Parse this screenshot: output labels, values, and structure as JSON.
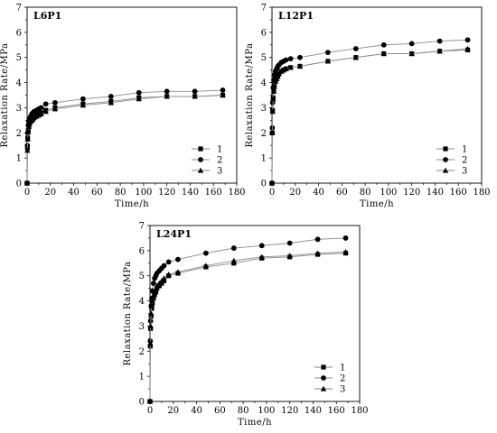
{
  "chart_data": [
    {
      "type": "line",
      "title": "L6P1",
      "xlabel": "Time/h",
      "ylabel": "Relaxation Rate/MPa",
      "xlim": [
        0,
        180
      ],
      "ylim": [
        0,
        7
      ],
      "xticks": [
        "0",
        "20",
        "40",
        "60",
        "80",
        "100",
        "120",
        "140",
        "160",
        "180"
      ],
      "yticks": [
        "0",
        "1",
        "2",
        "3",
        "4",
        "5",
        "6",
        "7"
      ],
      "legend_position": "bottom-right",
      "series": [
        {
          "name": "1",
          "marker": "square",
          "x": [
            0,
            0.25,
            0.5,
            1,
            1.5,
            2,
            3,
            4,
            5,
            6,
            8,
            10,
            12,
            16,
            24,
            48,
            72,
            96,
            120,
            144,
            168
          ],
          "y": [
            0,
            1.4,
            1.8,
            2.1,
            2.3,
            2.4,
            2.5,
            2.55,
            2.6,
            2.65,
            2.7,
            2.75,
            2.8,
            2.9,
            3.0,
            3.15,
            3.25,
            3.4,
            3.45,
            3.45,
            3.5
          ]
        },
        {
          "name": "2",
          "marker": "circle",
          "x": [
            0,
            0.25,
            0.5,
            1,
            1.5,
            2,
            3,
            4,
            5,
            6,
            8,
            10,
            12,
            16,
            24,
            48,
            72,
            96,
            120,
            144,
            168
          ],
          "y": [
            0,
            1.5,
            2.0,
            2.3,
            2.45,
            2.55,
            2.65,
            2.75,
            2.8,
            2.85,
            2.9,
            2.95,
            3.0,
            3.15,
            3.2,
            3.35,
            3.45,
            3.6,
            3.65,
            3.65,
            3.7
          ]
        },
        {
          "name": "3",
          "marker": "triangle",
          "x": [
            0,
            0.25,
            0.5,
            1,
            1.5,
            2,
            3,
            4,
            5,
            6,
            8,
            10,
            12,
            16,
            24,
            48,
            72,
            96,
            120,
            144,
            168
          ],
          "y": [
            0,
            1.3,
            1.75,
            2.05,
            2.25,
            2.35,
            2.45,
            2.5,
            2.55,
            2.6,
            2.65,
            2.7,
            2.75,
            2.85,
            2.95,
            3.1,
            3.2,
            3.35,
            3.45,
            3.45,
            3.5
          ]
        }
      ]
    },
    {
      "type": "line",
      "title": "L12P1",
      "xlabel": "Time/h",
      "ylabel": "Relaxation Rate/MPa",
      "xlim": [
        0,
        180
      ],
      "ylim": [
        0,
        7
      ],
      "xticks": [
        "0",
        "20",
        "40",
        "60",
        "80",
        "100",
        "120",
        "140",
        "160",
        "180"
      ],
      "yticks": [
        "0",
        "1",
        "2",
        "3",
        "4",
        "5",
        "6",
        "7"
      ],
      "legend_position": "bottom-right",
      "series": [
        {
          "name": "1",
          "marker": "square",
          "x": [
            0,
            0.25,
            0.5,
            1,
            1.5,
            2,
            3,
            4,
            5,
            6,
            8,
            10,
            12,
            16,
            24,
            48,
            72,
            96,
            120,
            144,
            168
          ],
          "y": [
            0,
            2.0,
            2.9,
            3.4,
            3.7,
            3.9,
            4.1,
            4.2,
            4.3,
            4.35,
            4.45,
            4.5,
            4.55,
            4.6,
            4.65,
            4.85,
            5.0,
            5.15,
            5.15,
            5.25,
            5.3
          ]
        },
        {
          "name": "2",
          "marker": "circle",
          "x": [
            0,
            0.25,
            0.5,
            1,
            1.5,
            2,
            3,
            4,
            5,
            6,
            8,
            10,
            12,
            16,
            24,
            48,
            72,
            96,
            120,
            144,
            168
          ],
          "y": [
            0,
            2.2,
            3.2,
            3.8,
            4.1,
            4.3,
            4.45,
            4.55,
            4.65,
            4.7,
            4.8,
            4.85,
            4.9,
            4.95,
            5.0,
            5.2,
            5.35,
            5.5,
            5.55,
            5.65,
            5.7
          ]
        },
        {
          "name": "3",
          "marker": "triangle",
          "x": [
            0,
            0.25,
            0.5,
            1,
            1.5,
            2,
            3,
            4,
            5,
            6,
            8,
            10,
            12,
            16,
            24,
            48,
            72,
            96,
            120,
            144,
            168
          ],
          "y": [
            0,
            2.0,
            2.85,
            3.35,
            3.65,
            3.85,
            4.05,
            4.15,
            4.25,
            4.35,
            4.45,
            4.5,
            4.55,
            4.6,
            4.65,
            4.85,
            5.0,
            5.15,
            5.15,
            5.25,
            5.35
          ]
        }
      ]
    },
    {
      "type": "line",
      "title": "L24P1",
      "xlabel": "Time/h",
      "ylabel": "Relaxation Rate/MPa",
      "xlim": [
        0,
        180
      ],
      "ylim": [
        0,
        7
      ],
      "xticks": [
        "0",
        "20",
        "40",
        "60",
        "80",
        "100",
        "120",
        "140",
        "160",
        "180"
      ],
      "yticks": [
        "0",
        "1",
        "2",
        "3",
        "4",
        "5",
        "6",
        "7"
      ],
      "legend_position": "bottom-right",
      "series": [
        {
          "name": "1",
          "marker": "square",
          "x": [
            0,
            0.25,
            0.5,
            1,
            1.5,
            2,
            3,
            4,
            5,
            6,
            8,
            10,
            12,
            16,
            24,
            48,
            72,
            96,
            120,
            144,
            168
          ],
          "y": [
            0,
            2.2,
            2.9,
            3.4,
            3.7,
            3.9,
            4.1,
            4.25,
            4.35,
            4.5,
            4.6,
            4.7,
            4.8,
            5.0,
            5.1,
            5.35,
            5.5,
            5.7,
            5.75,
            5.85,
            5.9
          ]
        },
        {
          "name": "2",
          "marker": "circle",
          "x": [
            0,
            0.25,
            0.5,
            1,
            1.5,
            2,
            3,
            4,
            5,
            6,
            8,
            10,
            12,
            16,
            24,
            48,
            72,
            96,
            120,
            144,
            168
          ],
          "y": [
            0,
            2.4,
            3.2,
            3.8,
            4.1,
            4.4,
            4.7,
            4.9,
            5.0,
            5.1,
            5.2,
            5.3,
            5.4,
            5.55,
            5.65,
            5.9,
            6.1,
            6.2,
            6.3,
            6.45,
            6.5
          ]
        },
        {
          "name": "3",
          "marker": "triangle",
          "x": [
            0,
            0.25,
            0.5,
            1,
            1.5,
            2,
            3,
            4,
            5,
            6,
            8,
            10,
            12,
            16,
            24,
            48,
            72,
            96,
            120,
            144,
            168
          ],
          "y": [
            0,
            2.3,
            3.0,
            3.5,
            3.8,
            4.0,
            4.2,
            4.35,
            4.45,
            4.6,
            4.7,
            4.8,
            4.9,
            5.05,
            5.15,
            5.4,
            5.6,
            5.75,
            5.8,
            5.9,
            5.95
          ]
        }
      ]
    }
  ]
}
